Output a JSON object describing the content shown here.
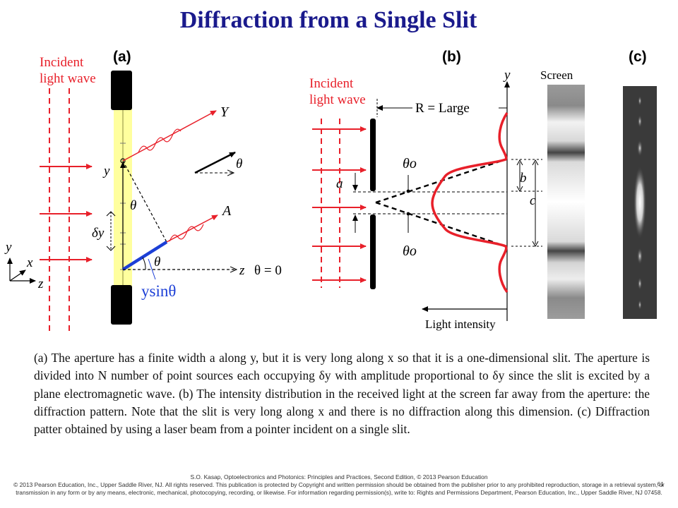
{
  "title": "Diffraction from a Single Slit",
  "panels": {
    "a": {
      "label": "(a)",
      "incident_label": [
        "Incident",
        "light wave"
      ],
      "ray_Y": "Y",
      "ray_A": "A",
      "theta": "θ",
      "theta_eq_zero": "θ = 0",
      "y_label": "y",
      "dy_label": "δy",
      "ysin_label": "ysinθ",
      "axis_y": "y",
      "axis_x": "x",
      "axis_z": "z",
      "z_label": "z"
    },
    "b": {
      "label": "(b)",
      "incident_label": [
        "Incident",
        "light wave"
      ],
      "R_label": "R = Large",
      "y_axis": "y",
      "screen_label": "Screen",
      "a_label": "a",
      "b_label": "b",
      "c_label": "c",
      "theta_o": "θo",
      "light_intensity": "Light intensity"
    },
    "c": {
      "label": "(c)"
    }
  },
  "colors": {
    "title": "#1a1a8c",
    "red": "#e8202a",
    "blue": "#1c3fd6",
    "yellow": "#ffff9e"
  },
  "caption": "(a) The aperture has a finite width a along y, but it is very long along x so that it is a one-dimensional slit. The aperture is divided into N number of point sources each occupying δy with amplitude proportional to δy since the slit is excited by a plane electromagnetic wave. (b) The intensity distribution in the received light at the screen far away from the aperture: the diffraction pattern. Note that the slit is very long along x and there is no diffraction along this dimension. (c) Diffraction patter obtained by using a laser beam from a pointer incident on a single slit.",
  "credit": {
    "line1": "S.O. Kasap, Optoelectronics and Photonics: Principles and Practices, Second Edition, © 2013 Pearson Education",
    "line2": "© 2013 Pearson Education, Inc., Upper Saddle River, NJ. All rights reserved. This publication is protected by Copyright and written permission should be obtained from the publisher prior to any prohibited reproduction, storage in a retrieval system, or transmission in any form or by any means, electronic, mechanical, photocopying, recording, or likewise. For information regarding permission(s), write to: Rights and Permissions Department, Pearson Education, Inc., Upper Saddle River, NJ 07458.",
    "page": "61"
  }
}
